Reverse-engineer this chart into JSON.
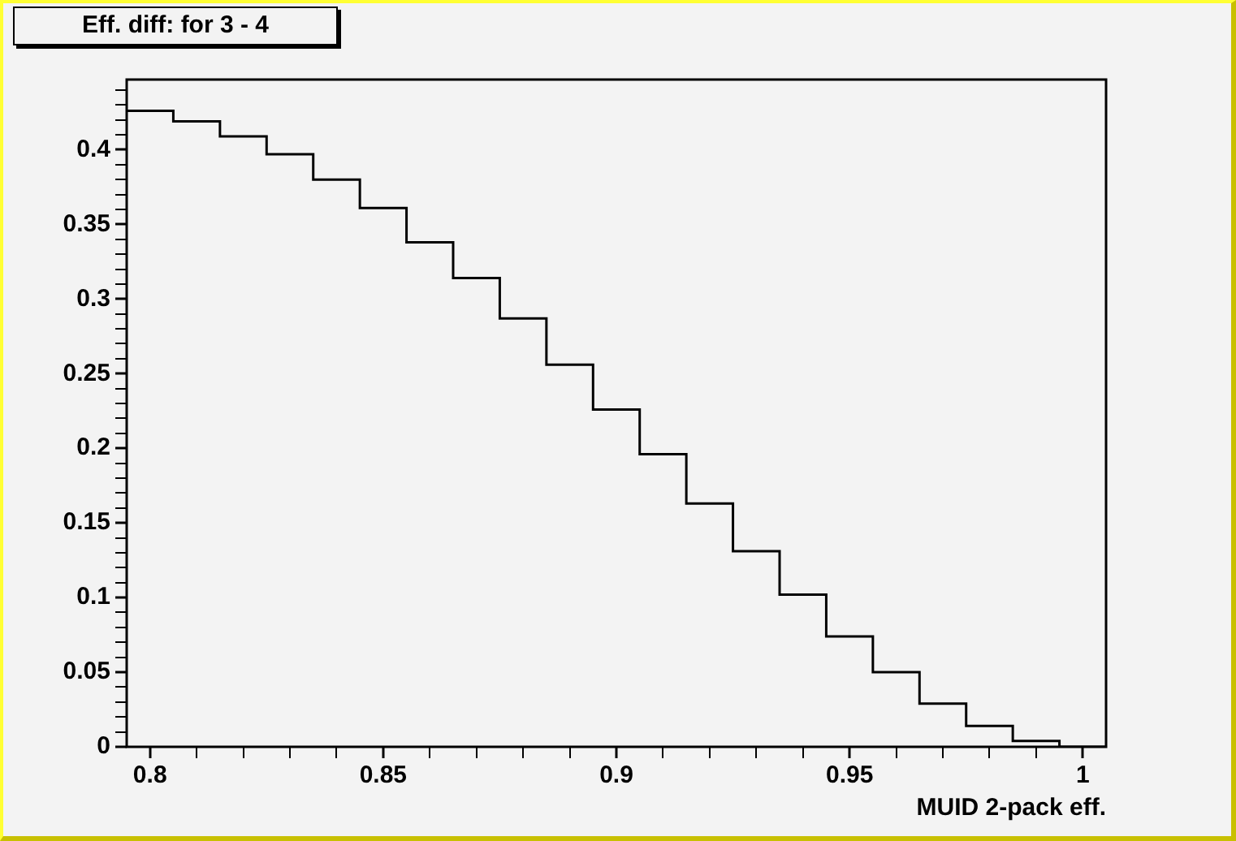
{
  "chart_data": {
    "type": "histogram",
    "title": "Eff. diff: for 3 - 4",
    "xlabel": "MUID 2-pack eff.",
    "bins": [
      0.795,
      0.805,
      0.815,
      0.825,
      0.835,
      0.845,
      0.855,
      0.865,
      0.875,
      0.885,
      0.895,
      0.905,
      0.915,
      0.925,
      0.935,
      0.945,
      0.955,
      0.965,
      0.975,
      0.985,
      0.995,
      1.005
    ],
    "values": [
      0.426,
      0.419,
      0.409,
      0.397,
      0.38,
      0.361,
      0.338,
      0.314,
      0.287,
      0.256,
      0.226,
      0.196,
      0.163,
      0.131,
      0.102,
      0.074,
      0.05,
      0.029,
      0.014,
      0.004,
      0
    ],
    "color": "#000000",
    "xlim": [
      0.795,
      1.005
    ],
    "xticks": [
      0.8,
      {
        "value": 0.81,
        "label": null
      },
      {
        "value": 0.82,
        "label": null
      },
      {
        "value": 0.83,
        "label": null
      },
      {
        "value": 0.84,
        "label": null
      },
      0.85,
      {
        "value": 0.86,
        "label": null
      },
      {
        "value": 0.87,
        "label": null
      },
      {
        "value": 0.88,
        "label": null
      },
      {
        "value": 0.89,
        "label": null
      },
      0.9,
      {
        "value": 0.91,
        "label": null
      },
      {
        "value": 0.92,
        "label": null
      },
      {
        "value": 0.93,
        "label": null
      },
      {
        "value": 0.94,
        "label": null
      },
      0.95,
      {
        "value": 0.96,
        "label": null
      },
      {
        "value": 0.97,
        "label": null
      },
      {
        "value": 0.98,
        "label": null
      },
      {
        "value": 0.99,
        "label": null
      },
      1
    ],
    "ylim": [
      0,
      0.447
    ],
    "yticks": [
      0,
      {
        "value": 0.01,
        "label": null
      },
      {
        "value": 0.02,
        "label": null
      },
      {
        "value": 0.03,
        "label": null
      },
      {
        "value": 0.04,
        "label": null
      },
      0.05,
      {
        "value": 0.06,
        "label": null
      },
      {
        "value": 0.07,
        "label": null
      },
      {
        "value": 0.08,
        "label": null
      },
      {
        "value": 0.09,
        "label": null
      },
      0.1,
      {
        "value": 0.11,
        "label": null
      },
      {
        "value": 0.12,
        "label": null
      },
      {
        "value": 0.13,
        "label": null
      },
      {
        "value": 0.14,
        "label": null
      },
      0.15,
      {
        "value": 0.16,
        "label": null
      },
      {
        "value": 0.17,
        "label": null
      },
      {
        "value": 0.18,
        "label": null
      },
      {
        "value": 0.19,
        "label": null
      },
      0.2,
      {
        "value": 0.21,
        "label": null
      },
      {
        "value": 0.22,
        "label": null
      },
      {
        "value": 0.23,
        "label": null
      },
      {
        "value": 0.24,
        "label": null
      },
      0.25,
      {
        "value": 0.26,
        "label": null
      },
      {
        "value": 0.27,
        "label": null
      },
      {
        "value": 0.28,
        "label": null
      },
      {
        "value": 0.29,
        "label": null
      },
      0.3,
      {
        "value": 0.31,
        "label": null
      },
      {
        "value": 0.32,
        "label": null
      },
      {
        "value": 0.33,
        "label": null
      },
      {
        "value": 0.34,
        "label": null
      },
      0.35,
      {
        "value": 0.36,
        "label": null
      },
      {
        "value": 0.37,
        "label": null
      },
      {
        "value": 0.38,
        "label": null
      },
      {
        "value": 0.39,
        "label": null
      },
      0.4,
      {
        "value": 0.41,
        "label": null
      },
      {
        "value": 0.42,
        "label": null
      },
      {
        "value": 0.43,
        "label": null
      },
      {
        "value": 0.44,
        "label": null
      }
    ],
    "grid": false,
    "legend": false
  }
}
